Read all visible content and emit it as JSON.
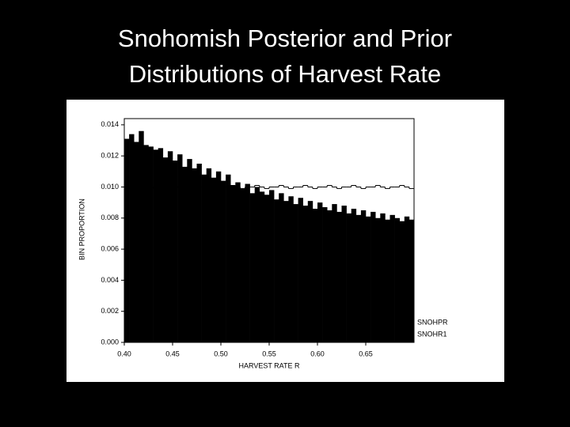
{
  "chart_data": {
    "type": "histogram",
    "title": "Snohomish Posterior and Prior Distributions of Harvest Rate",
    "x_label": "HARVEST RATE R",
    "y_label": "BIN PROPORTION",
    "bins": [
      0.4,
      0.405,
      0.41,
      0.415,
      0.42,
      0.425,
      0.43,
      0.435,
      0.44,
      0.445,
      0.45,
      0.455,
      0.46,
      0.465,
      0.47,
      0.475,
      0.48,
      0.485,
      0.49,
      0.495,
      0.5,
      0.505,
      0.51,
      0.515,
      0.52,
      0.525,
      0.53,
      0.535,
      0.54,
      0.545,
      0.55,
      0.555,
      0.56,
      0.565,
      0.57,
      0.575,
      0.58,
      0.585,
      0.59,
      0.595,
      0.6,
      0.605,
      0.61,
      0.615,
      0.62,
      0.625,
      0.63,
      0.635,
      0.64,
      0.645,
      0.65,
      0.655,
      0.66,
      0.665,
      0.67,
      0.675,
      0.68,
      0.685,
      0.69,
      0.695,
      0.7
    ],
    "series": [
      {
        "name": "SNOHPR",
        "color": "#000000",
        "style": "bars",
        "values": [
          0.0131,
          0.0134,
          0.0129,
          0.0136,
          0.0127,
          0.0126,
          0.0124,
          0.0125,
          0.0119,
          0.0123,
          0.0117,
          0.0121,
          0.0113,
          0.0118,
          0.0112,
          0.0115,
          0.0108,
          0.0112,
          0.0106,
          0.011,
          0.0104,
          0.0108,
          0.0101,
          0.0103,
          0.0099,
          0.0102,
          0.0096,
          0.01,
          0.0097,
          0.0095,
          0.0098,
          0.0092,
          0.0096,
          0.0091,
          0.0094,
          0.0089,
          0.0093,
          0.0088,
          0.0091,
          0.0086,
          0.009,
          0.0087,
          0.0085,
          0.0089,
          0.0084,
          0.0088,
          0.0083,
          0.0086,
          0.0082,
          0.0085,
          0.0081,
          0.0084,
          0.008,
          0.0083,
          0.0079,
          0.0082,
          0.008,
          0.0078,
          0.0081,
          0.0079
        ]
      },
      {
        "name": "SNOHR1",
        "color": "#000000",
        "style": "step",
        "values": [
          0.01,
          0.0099,
          0.0101,
          0.01,
          0.01,
          0.0099,
          0.01,
          0.0101,
          0.01,
          0.0099,
          0.01,
          0.01,
          0.0101,
          0.01,
          0.0099,
          0.01,
          0.01,
          0.0101,
          0.01,
          0.0099,
          0.01,
          0.01,
          0.0101,
          0.01,
          0.0099,
          0.01,
          0.01,
          0.0101,
          0.01,
          0.0099,
          0.01,
          0.01,
          0.0101,
          0.01,
          0.0099,
          0.01,
          0.01,
          0.0101,
          0.01,
          0.0099,
          0.01,
          0.01,
          0.0101,
          0.01,
          0.0099,
          0.01,
          0.01,
          0.0101,
          0.01,
          0.0099,
          0.01,
          0.01,
          0.0101,
          0.01,
          0.0099,
          0.01,
          0.01,
          0.0101,
          0.01,
          0.0099
        ]
      }
    ],
    "xlim": [
      0.4,
      0.7
    ],
    "ylim": [
      0,
      0.0144
    ],
    "xticks": [
      {
        "value": 0.4,
        "label": "0.40"
      },
      0.45,
      {
        "value": 0.5,
        "label": "0.50"
      },
      0.55,
      {
        "value": 0.6,
        "label": "0.60"
      },
      0.65
    ],
    "yticks": [
      {
        "value": 0,
        "label": "0.000"
      },
      0.002,
      0.004,
      0.006,
      0.008,
      {
        "value": 0.01,
        "label": "0.010"
      },
      0.012,
      0.014
    ]
  }
}
